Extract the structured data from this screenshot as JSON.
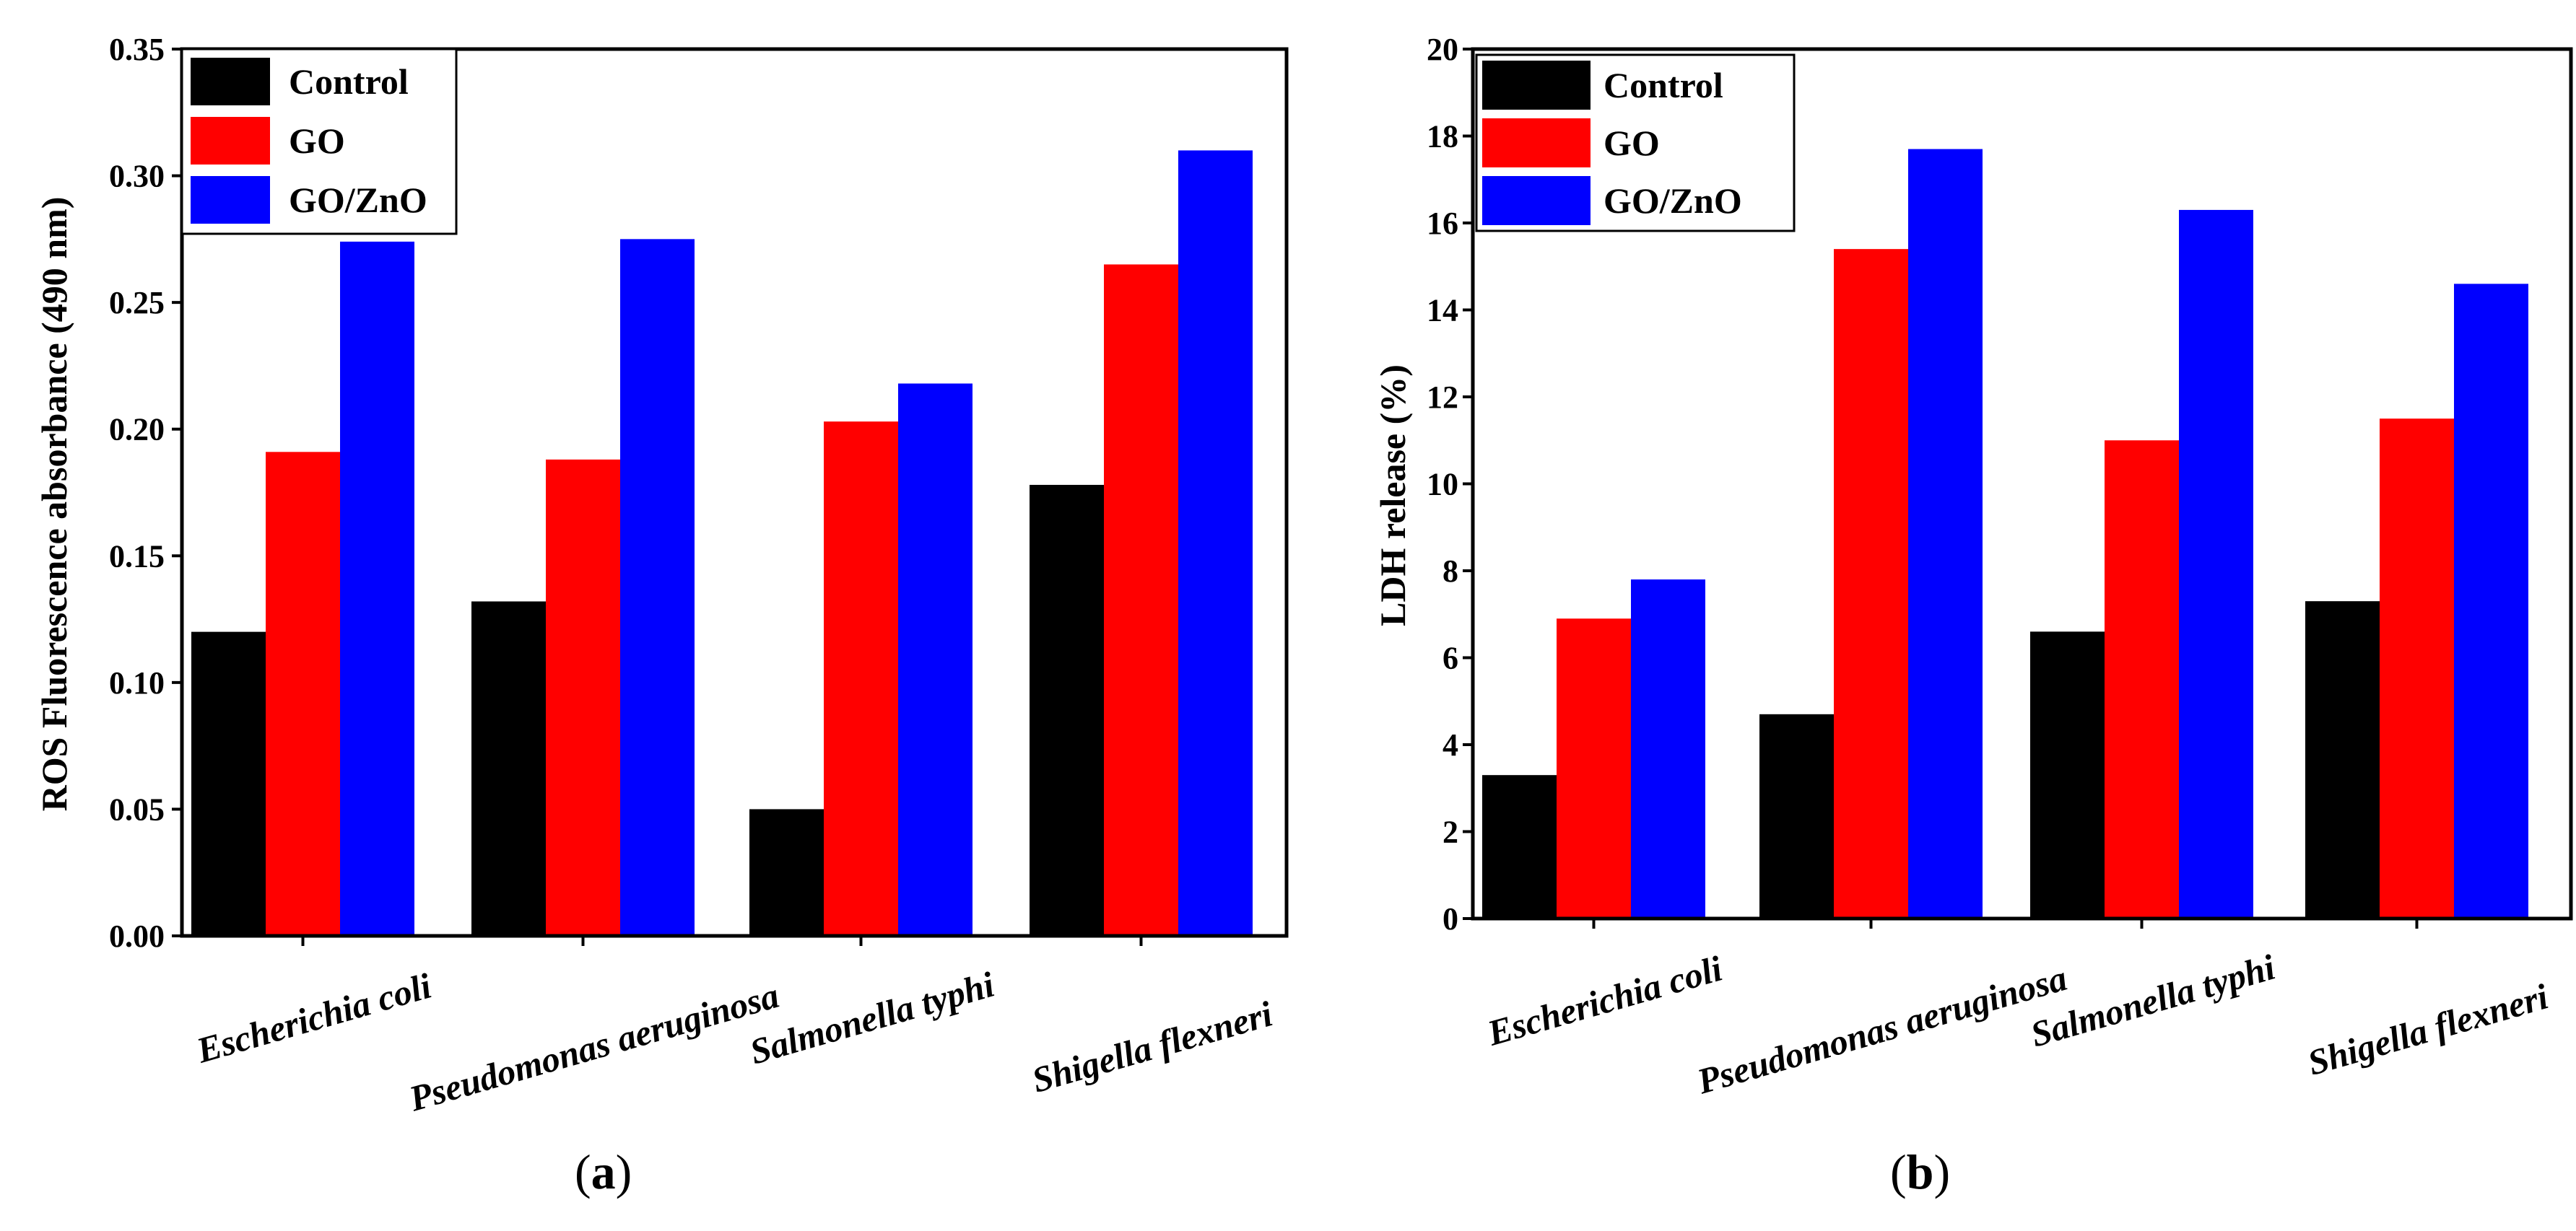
{
  "chart_data": [
    {
      "type": "bar",
      "panel_label": "a",
      "categories": [
        "Escherichia coli",
        "Pseudomonas aeruginosa",
        "Salmonella typhi",
        "Shigella flexneri"
      ],
      "series": [
        {
          "name": "Control",
          "color": "#000000",
          "values": [
            0.12,
            0.132,
            0.05,
            0.178
          ]
        },
        {
          "name": "GO",
          "color": "#ff0000",
          "values": [
            0.191,
            0.188,
            0.203,
            0.265
          ]
        },
        {
          "name": "GO/ZnO",
          "color": "#0000ff",
          "values": [
            0.274,
            0.275,
            0.218,
            0.31
          ]
        }
      ],
      "title": "",
      "xlabel": "",
      "ylabel": "ROS Fluorescence absorbance (490 nm)",
      "ylim": [
        0,
        0.35
      ],
      "yticks": [
        "0.00",
        "0.05",
        "0.10",
        "0.15",
        "0.20",
        "0.25",
        "0.30",
        "0.35"
      ],
      "legend_position": "top-left",
      "grid": false
    },
    {
      "type": "bar",
      "panel_label": "b",
      "categories": [
        "Escherichia coli",
        "Pseudomonas aeruginosa",
        "Salmonella typhi",
        "Shigella flexneri"
      ],
      "series": [
        {
          "name": "Control",
          "color": "#000000",
          "values": [
            3.3,
            4.7,
            6.6,
            7.3
          ]
        },
        {
          "name": "GO",
          "color": "#ff0000",
          "values": [
            6.9,
            15.4,
            11.0,
            11.5
          ]
        },
        {
          "name": "GO/ZnO",
          "color": "#0000ff",
          "values": [
            7.8,
            17.7,
            16.3,
            14.6
          ]
        }
      ],
      "title": "",
      "xlabel": "",
      "ylabel": "LDH release (%)",
      "ylim": [
        0,
        20
      ],
      "yticks": [
        "0",
        "2",
        "4",
        "6",
        "8",
        "10",
        "12",
        "14",
        "16",
        "18",
        "20"
      ],
      "legend_position": "top-left",
      "grid": false
    }
  ]
}
